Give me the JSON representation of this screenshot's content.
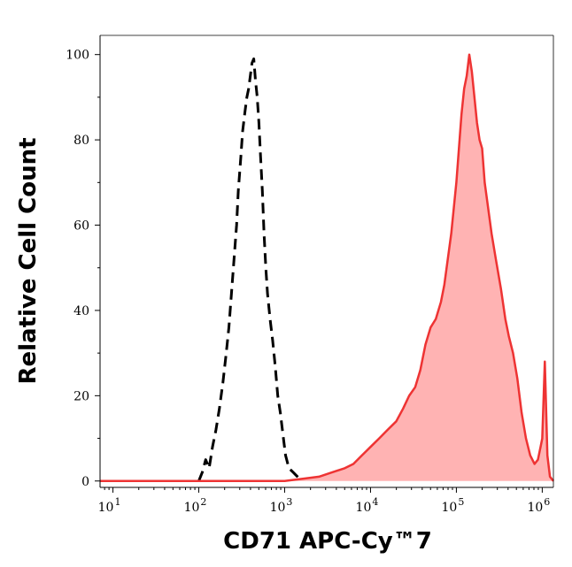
{
  "chart_data": {
    "type": "area",
    "xlabel": "CD71 APC-Cy™7",
    "ylabel": "Relative Cell Count",
    "xscale": "log",
    "xlim": [
      0.85,
      6.13
    ],
    "ylim": [
      -1.5,
      104.5
    ],
    "x_ticks": [
      {
        "base": "10",
        "exp": "1",
        "log": 1
      },
      {
        "base": "10",
        "exp": "2",
        "log": 2
      },
      {
        "base": "10",
        "exp": "3",
        "log": 3
      },
      {
        "base": "10",
        "exp": "4",
        "log": 4
      },
      {
        "base": "10",
        "exp": "5",
        "log": 5
      },
      {
        "base": "10",
        "exp": "6",
        "log": 6
      }
    ],
    "y_ticks": [
      {
        "label": "0",
        "value": 0
      },
      {
        "label": "20",
        "value": 20
      },
      {
        "label": "40",
        "value": 40
      },
      {
        "label": "60",
        "value": 60
      },
      {
        "label": "80",
        "value": 80
      },
      {
        "label": "100",
        "value": 100
      }
    ],
    "grid": false,
    "legend": "none",
    "series": [
      {
        "style": "dashed",
        "color": "#000000",
        "points": [
          [
            2.0,
            0
          ],
          [
            2.04,
            2
          ],
          [
            2.08,
            5
          ],
          [
            2.12,
            3
          ],
          [
            2.16,
            8
          ],
          [
            2.2,
            12
          ],
          [
            2.24,
            17
          ],
          [
            2.28,
            23
          ],
          [
            2.32,
            30
          ],
          [
            2.35,
            36
          ],
          [
            2.38,
            44
          ],
          [
            2.41,
            52
          ],
          [
            2.44,
            60
          ],
          [
            2.46,
            68
          ],
          [
            2.49,
            76
          ],
          [
            2.51,
            82
          ],
          [
            2.54,
            87
          ],
          [
            2.56,
            90
          ],
          [
            2.58,
            92
          ],
          [
            2.6,
            95
          ],
          [
            2.62,
            98
          ],
          [
            2.64,
            99
          ],
          [
            2.66,
            94
          ],
          [
            2.68,
            90
          ],
          [
            2.7,
            84
          ],
          [
            2.72,
            76
          ],
          [
            2.74,
            68
          ],
          [
            2.76,
            58
          ],
          [
            2.78,
            50
          ],
          [
            2.8,
            44
          ],
          [
            2.83,
            38
          ],
          [
            2.86,
            33
          ],
          [
            2.89,
            27
          ],
          [
            2.92,
            20
          ],
          [
            2.95,
            16
          ],
          [
            2.98,
            11
          ],
          [
            3.01,
            6
          ],
          [
            3.05,
            3
          ],
          [
            3.1,
            2
          ],
          [
            3.15,
            1
          ],
          [
            3.2,
            0
          ]
        ]
      },
      {
        "style": "filled",
        "color": "#ee3333",
        "fill": "#ffb3b3",
        "points": [
          [
            0.85,
            0
          ],
          [
            3.0,
            0
          ],
          [
            3.2,
            0.5
          ],
          [
            3.4,
            1
          ],
          [
            3.55,
            2
          ],
          [
            3.7,
            3
          ],
          [
            3.8,
            4
          ],
          [
            3.9,
            6
          ],
          [
            4.0,
            8
          ],
          [
            4.1,
            10
          ],
          [
            4.2,
            12
          ],
          [
            4.3,
            14
          ],
          [
            4.38,
            17
          ],
          [
            4.45,
            20
          ],
          [
            4.52,
            22
          ],
          [
            4.58,
            26
          ],
          [
            4.64,
            32
          ],
          [
            4.7,
            36
          ],
          [
            4.76,
            38
          ],
          [
            4.82,
            42
          ],
          [
            4.86,
            46
          ],
          [
            4.9,
            52
          ],
          [
            4.94,
            58
          ],
          [
            4.97,
            64
          ],
          [
            5.0,
            70
          ],
          [
            5.03,
            78
          ],
          [
            5.06,
            86
          ],
          [
            5.09,
            92
          ],
          [
            5.12,
            95
          ],
          [
            5.15,
            100
          ],
          [
            5.18,
            96
          ],
          [
            5.21,
            90
          ],
          [
            5.24,
            84
          ],
          [
            5.27,
            80
          ],
          [
            5.3,
            78
          ],
          [
            5.33,
            70
          ],
          [
            5.37,
            64
          ],
          [
            5.41,
            58
          ],
          [
            5.46,
            52
          ],
          [
            5.52,
            45
          ],
          [
            5.57,
            38
          ],
          [
            5.61,
            34
          ],
          [
            5.66,
            30
          ],
          [
            5.71,
            24
          ],
          [
            5.76,
            16
          ],
          [
            5.81,
            10
          ],
          [
            5.86,
            6
          ],
          [
            5.91,
            4
          ],
          [
            5.95,
            5
          ],
          [
            5.98,
            8
          ],
          [
            6.0,
            10
          ],
          [
            6.03,
            28
          ],
          [
            6.06,
            6
          ],
          [
            6.09,
            1
          ],
          [
            6.13,
            0
          ]
        ]
      }
    ]
  }
}
